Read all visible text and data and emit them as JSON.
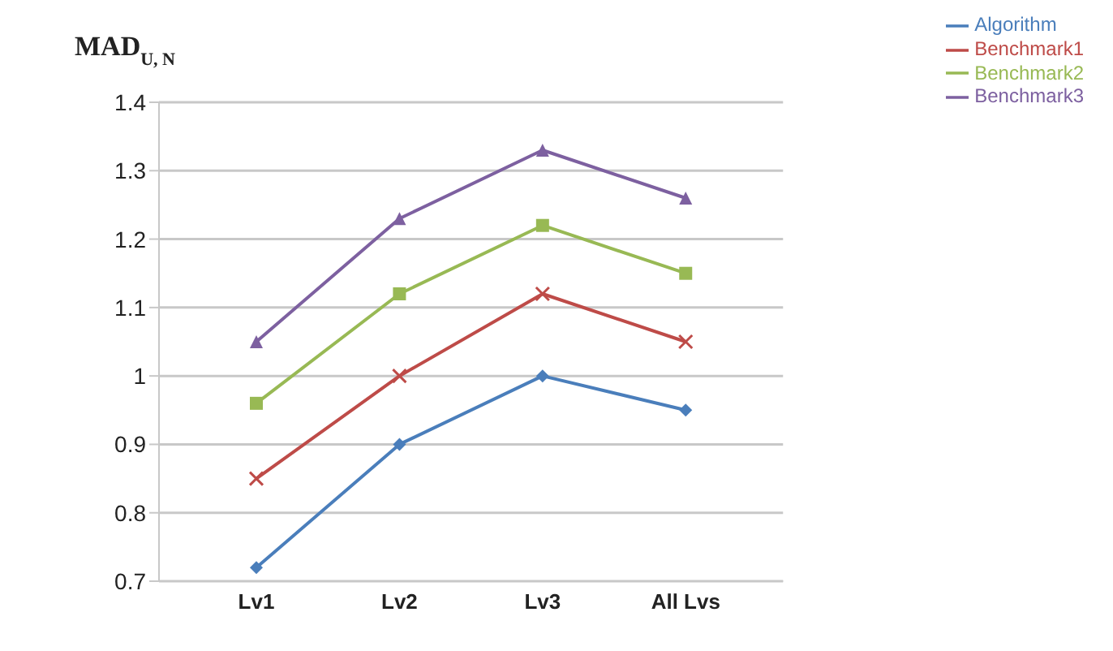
{
  "chart_data": {
    "type": "line",
    "ylabel": "MAD$_{U, N}$",
    "categories": [
      "Lv1",
      "Lv2",
      "Lv3",
      "All Lvs"
    ],
    "series": [
      {
        "name": "Algorithm",
        "color": "#4a7ebb",
        "marker": "diamond",
        "values": [
          0.72,
          0.9,
          1.0,
          0.95
        ]
      },
      {
        "name": "Benchmark1",
        "color": "#be4b48",
        "marker": "cross",
        "values": [
          0.85,
          1.0,
          1.12,
          1.05
        ]
      },
      {
        "name": "Benchmark2",
        "color": "#98b954",
        "marker": "square",
        "values": [
          0.96,
          1.12,
          1.22,
          1.15
        ]
      },
      {
        "name": "Benchmark3",
        "color": "#7d60a0",
        "marker": "triangle",
        "values": [
          1.05,
          1.23,
          1.33,
          1.26
        ]
      }
    ],
    "ylim": [
      0.7,
      1.4
    ],
    "yticks": [
      0.7,
      0.8,
      0.9,
      1,
      1.1,
      1.2,
      1.3,
      1.4
    ],
    "grid": "y",
    "legend": "top right",
    "line_style": "solid"
  }
}
